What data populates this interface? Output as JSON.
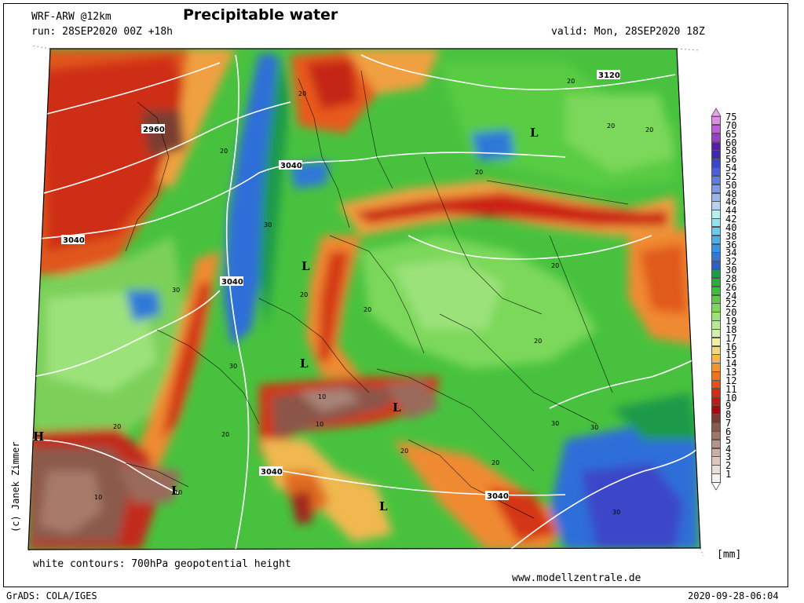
{
  "header": {
    "model": "WRF-ARW @12km",
    "run": "run: 28SEP2020 00Z +18h",
    "title": "Precipitable water",
    "valid": "valid: Mon, 28SEP2020 18Z"
  },
  "map": {
    "contour_labels": [
      "3120",
      "2960",
      "3040",
      "3040",
      "3040",
      "3040",
      "3040"
    ],
    "value_labels": [
      "20",
      "20",
      "20",
      "20",
      "20",
      "20",
      "30",
      "30",
      "30",
      "30",
      "30",
      "30",
      "20",
      "20",
      "20",
      "10",
      "10",
      "10",
      "10",
      "20",
      "20",
      "20",
      "20",
      "20"
    ],
    "pressure_marks": [
      "L",
      "L",
      "L",
      "L",
      "L",
      "H",
      "L"
    ]
  },
  "legend": {
    "unit": "[mm]",
    "values": [
      "75",
      "70",
      "65",
      "60",
      "58",
      "56",
      "54",
      "52",
      "50",
      "48",
      "46",
      "44",
      "42",
      "40",
      "38",
      "36",
      "34",
      "32",
      "30",
      "28",
      "26",
      "24",
      "22",
      "20",
      "19",
      "18",
      "17",
      "16",
      "15",
      "14",
      "13",
      "12",
      "11",
      "10",
      "9",
      "8",
      "7",
      "6",
      "5",
      "4",
      "3",
      "2",
      "1"
    ],
    "colors": [
      "#e08ce8",
      "#c060d8",
      "#9a40c8",
      "#5a1ca8",
      "#3c2aa8",
      "#3a46c8",
      "#4a62d8",
      "#5c7ee0",
      "#7c9ae8",
      "#9cb6ee",
      "#b8d0f2",
      "#b4f0f0",
      "#8ee4f0",
      "#6ccaf0",
      "#4aaee8",
      "#3894e0",
      "#2e78d8",
      "#2a60c8",
      "#1e9a48",
      "#2eaa3c",
      "#3ebe3a",
      "#58cc42",
      "#7cd85a",
      "#9ce27a",
      "#b8ea96",
      "#d0f0b0",
      "#f0f0a0",
      "#f2d878",
      "#f0b850",
      "#f09630",
      "#ec7420",
      "#e0501a",
      "#d03018",
      "#c01a14",
      "#a00c10",
      "#7a3c30",
      "#8c5a4c",
      "#a0766a",
      "#b89488",
      "#ccb0a6",
      "#dcc8c0",
      "#eadcd8",
      "#f6f0ee"
    ],
    "triangles": {
      "top": "#e8a0f0",
      "bottom": "#ffffff"
    }
  },
  "footer": {
    "contours_note": "white contours: 700hPa geopotential height",
    "copyright": "(c) Janek Zimmer",
    "site": "www.modellzentrale.de",
    "software": "GrADS: COLA/IGES",
    "timestamp": "2020-09-28-06:04"
  }
}
